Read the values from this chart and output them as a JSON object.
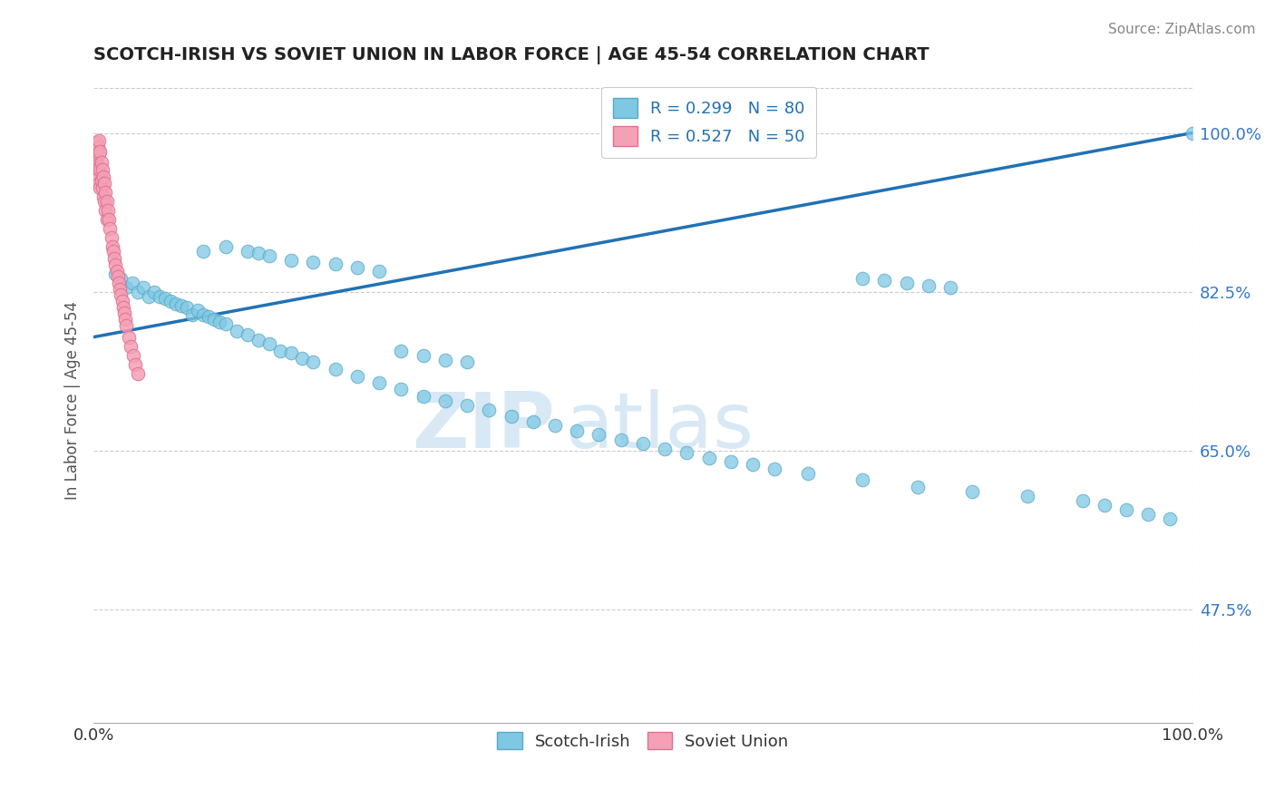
{
  "title": "SCOTCH-IRISH VS SOVIET UNION IN LABOR FORCE | AGE 45-54 CORRELATION CHART",
  "source": "Source: ZipAtlas.com",
  "ylabel": "In Labor Force | Age 45-54",
  "xmin": 0.0,
  "xmax": 1.0,
  "ymin": 0.35,
  "ymax": 1.06,
  "yticks": [
    0.475,
    0.65,
    0.825,
    1.0
  ],
  "ytick_labels": [
    "47.5%",
    "65.0%",
    "82.5%",
    "100.0%"
  ],
  "legend_blue_label": "R = 0.299   N = 80",
  "legend_pink_label": "R = 0.527   N = 50",
  "scatter_blue": {
    "x": [
      0.02,
      0.025,
      0.03,
      0.035,
      0.04,
      0.045,
      0.05,
      0.055,
      0.06,
      0.065,
      0.07,
      0.075,
      0.08,
      0.085,
      0.09,
      0.095,
      0.1,
      0.105,
      0.11,
      0.115,
      0.12,
      0.13,
      0.14,
      0.15,
      0.16,
      0.17,
      0.18,
      0.19,
      0.2,
      0.22,
      0.24,
      0.26,
      0.28,
      0.3,
      0.32,
      0.34,
      0.36,
      0.38,
      0.4,
      0.42,
      0.44,
      0.46,
      0.48,
      0.5,
      0.52,
      0.54,
      0.56,
      0.58,
      0.6,
      0.62,
      0.65,
      0.7,
      0.75,
      0.8,
      0.85,
      0.9,
      0.92,
      0.94,
      0.96,
      0.98,
      0.1,
      0.12,
      0.14,
      0.15,
      0.16,
      0.18,
      0.2,
      0.22,
      0.24,
      0.26,
      0.28,
      0.3,
      0.32,
      0.34,
      0.7,
      0.72,
      0.74,
      0.76,
      0.78,
      1.0
    ],
    "y": [
      0.845,
      0.84,
      0.83,
      0.835,
      0.825,
      0.83,
      0.82,
      0.825,
      0.82,
      0.818,
      0.815,
      0.812,
      0.81,
      0.808,
      0.8,
      0.805,
      0.8,
      0.798,
      0.795,
      0.792,
      0.79,
      0.782,
      0.778,
      0.772,
      0.768,
      0.76,
      0.758,
      0.752,
      0.748,
      0.74,
      0.732,
      0.725,
      0.718,
      0.71,
      0.705,
      0.7,
      0.695,
      0.688,
      0.682,
      0.678,
      0.672,
      0.668,
      0.662,
      0.658,
      0.652,
      0.648,
      0.642,
      0.638,
      0.635,
      0.63,
      0.625,
      0.618,
      0.61,
      0.605,
      0.6,
      0.595,
      0.59,
      0.585,
      0.58,
      0.575,
      0.87,
      0.875,
      0.87,
      0.868,
      0.865,
      0.86,
      0.858,
      0.856,
      0.852,
      0.848,
      0.76,
      0.755,
      0.75,
      0.748,
      0.84,
      0.838,
      0.835,
      0.832,
      0.83,
      1.0
    ]
  },
  "scatter_pink": {
    "x": [
      0.002,
      0.002,
      0.003,
      0.003,
      0.003,
      0.004,
      0.004,
      0.004,
      0.005,
      0.005,
      0.005,
      0.005,
      0.006,
      0.006,
      0.006,
      0.007,
      0.007,
      0.008,
      0.008,
      0.009,
      0.009,
      0.01,
      0.01,
      0.011,
      0.011,
      0.012,
      0.012,
      0.013,
      0.014,
      0.015,
      0.016,
      0.017,
      0.018,
      0.019,
      0.02,
      0.021,
      0.022,
      0.023,
      0.024,
      0.025,
      0.026,
      0.027,
      0.028,
      0.029,
      0.03,
      0.032,
      0.034,
      0.036,
      0.038,
      0.04
    ],
    "y": [
      0.98,
      0.97,
      0.99,
      0.975,
      0.96,
      0.985,
      0.965,
      0.95,
      0.992,
      0.978,
      0.962,
      0.945,
      0.98,
      0.96,
      0.94,
      0.968,
      0.948,
      0.96,
      0.94,
      0.952,
      0.93,
      0.945,
      0.925,
      0.935,
      0.915,
      0.925,
      0.905,
      0.915,
      0.905,
      0.895,
      0.885,
      0.875,
      0.87,
      0.862,
      0.855,
      0.848,
      0.842,
      0.835,
      0.828,
      0.822,
      0.815,
      0.808,
      0.802,
      0.795,
      0.788,
      0.775,
      0.765,
      0.755,
      0.745,
      0.735
    ]
  },
  "trendline_x": [
    0.0,
    1.0
  ],
  "trendline_y": [
    0.775,
    1.0
  ],
  "blue_color": "#7ec8e3",
  "blue_edge": "#5aa8c8",
  "pink_color": "#f4a0b5",
  "pink_edge": "#e07090",
  "trendline_color": "#2171b5",
  "watermark_zip": "ZIP",
  "watermark_atlas": "atlas",
  "watermark_color": "#d8e8f5",
  "background_color": "#ffffff",
  "grid_color": "#cccccc"
}
